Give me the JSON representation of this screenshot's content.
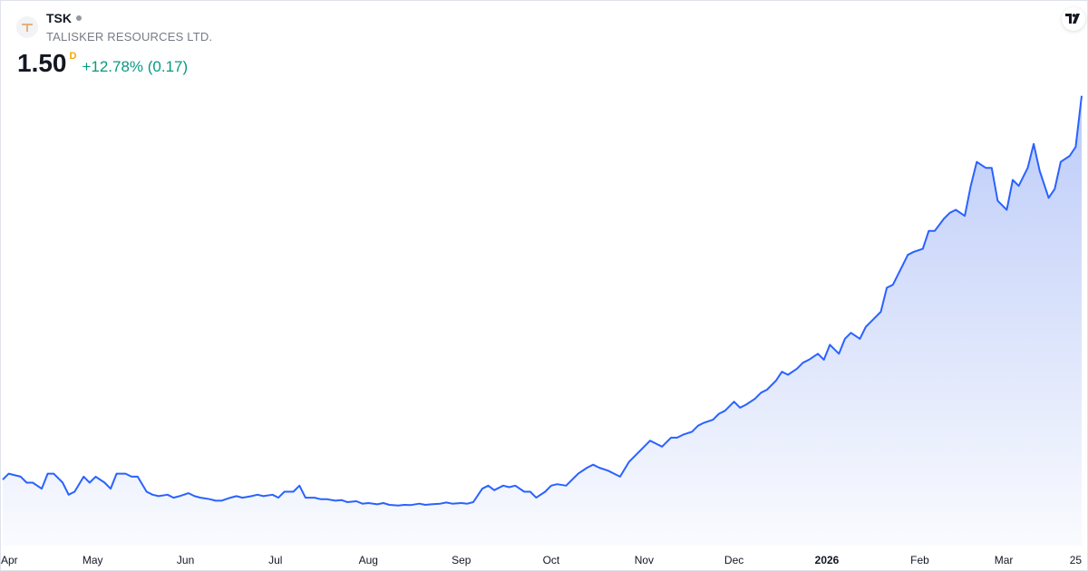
{
  "symbol": {
    "ticker": "TSK",
    "name": "TALISKER RESOURCES LTD.",
    "price": "1.50",
    "interval": "D",
    "change": "+12.78% (0.17)"
  },
  "icons": {
    "company_logo": "talisker-logo-icon",
    "status": "status-dot-icon",
    "brand": "tradingview-logo-icon"
  },
  "colors": {
    "line": "#2962ff",
    "area_top": "#bccbf8",
    "change_positive": "#089981",
    "interval": "#f7a600"
  },
  "chart_data": {
    "type": "area",
    "x_start": "2025-04-01",
    "x_end": "2026-03-27",
    "ylim": [
      0,
      1.82
    ],
    "grid": false,
    "x_ticks": [
      {
        "label": "Apr",
        "date": "2025-04-01",
        "bold": false
      },
      {
        "label": "May",
        "date": "2025-05-01",
        "bold": false
      },
      {
        "label": "Jun",
        "date": "2025-06-01",
        "bold": false
      },
      {
        "label": "Jul",
        "date": "2025-07-01",
        "bold": false
      },
      {
        "label": "Aug",
        "date": "2025-08-01",
        "bold": false
      },
      {
        "label": "Sep",
        "date": "2025-09-01",
        "bold": false
      },
      {
        "label": "Oct",
        "date": "2025-10-01",
        "bold": false
      },
      {
        "label": "Nov",
        "date": "2025-11-01",
        "bold": false
      },
      {
        "label": "Dec",
        "date": "2025-12-01",
        "bold": false
      },
      {
        "label": "2026",
        "date": "2026-01-01",
        "bold": true
      },
      {
        "label": "Feb",
        "date": "2026-02-01",
        "bold": false
      },
      {
        "label": "Mar",
        "date": "2026-03-01",
        "bold": false
      },
      {
        "label": "25",
        "date": "2026-03-25",
        "bold": false
      }
    ],
    "series": [
      {
        "values": [
          [
            "2025-04-01",
            0.22
          ],
          [
            "2025-04-03",
            0.24
          ],
          [
            "2025-04-07",
            0.23
          ],
          [
            "2025-04-09",
            0.21
          ],
          [
            "2025-04-11",
            0.21
          ],
          [
            "2025-04-14",
            0.19
          ],
          [
            "2025-04-16",
            0.24
          ],
          [
            "2025-04-18",
            0.24
          ],
          [
            "2025-04-21",
            0.21
          ],
          [
            "2025-04-23",
            0.17
          ],
          [
            "2025-04-25",
            0.18
          ],
          [
            "2025-04-28",
            0.23
          ],
          [
            "2025-04-30",
            0.21
          ],
          [
            "2025-05-02",
            0.23
          ],
          [
            "2025-05-05",
            0.21
          ],
          [
            "2025-05-07",
            0.19
          ],
          [
            "2025-05-09",
            0.24
          ],
          [
            "2025-05-12",
            0.24
          ],
          [
            "2025-05-14",
            0.23
          ],
          [
            "2025-05-16",
            0.23
          ],
          [
            "2025-05-19",
            0.18
          ],
          [
            "2025-05-21",
            0.17
          ],
          [
            "2025-05-23",
            0.165
          ],
          [
            "2025-05-26",
            0.17
          ],
          [
            "2025-05-28",
            0.16
          ],
          [
            "2025-05-30",
            0.165
          ],
          [
            "2025-06-02",
            0.175
          ],
          [
            "2025-06-04",
            0.165
          ],
          [
            "2025-06-06",
            0.16
          ],
          [
            "2025-06-09",
            0.155
          ],
          [
            "2025-06-11",
            0.15
          ],
          [
            "2025-06-13",
            0.15
          ],
          [
            "2025-06-16",
            0.16
          ],
          [
            "2025-06-18",
            0.165
          ],
          [
            "2025-06-20",
            0.16
          ],
          [
            "2025-06-23",
            0.165
          ],
          [
            "2025-06-25",
            0.17
          ],
          [
            "2025-06-27",
            0.165
          ],
          [
            "2025-06-30",
            0.17
          ],
          [
            "2025-07-02",
            0.16
          ],
          [
            "2025-07-04",
            0.18
          ],
          [
            "2025-07-07",
            0.18
          ],
          [
            "2025-07-09",
            0.2
          ],
          [
            "2025-07-11",
            0.16
          ],
          [
            "2025-07-14",
            0.16
          ],
          [
            "2025-07-16",
            0.155
          ],
          [
            "2025-07-18",
            0.155
          ],
          [
            "2025-07-21",
            0.15
          ],
          [
            "2025-07-23",
            0.152
          ],
          [
            "2025-07-25",
            0.145
          ],
          [
            "2025-07-28",
            0.148
          ],
          [
            "2025-07-30",
            0.14
          ],
          [
            "2025-08-01",
            0.142
          ],
          [
            "2025-08-04",
            0.138
          ],
          [
            "2025-08-06",
            0.142
          ],
          [
            "2025-08-08",
            0.136
          ],
          [
            "2025-08-11",
            0.134
          ],
          [
            "2025-08-13",
            0.136
          ],
          [
            "2025-08-15",
            0.135
          ],
          [
            "2025-08-18",
            0.14
          ],
          [
            "2025-08-20",
            0.136
          ],
          [
            "2025-08-22",
            0.138
          ],
          [
            "2025-08-25",
            0.14
          ],
          [
            "2025-08-27",
            0.144
          ],
          [
            "2025-08-29",
            0.14
          ],
          [
            "2025-09-01",
            0.142
          ],
          [
            "2025-09-03",
            0.14
          ],
          [
            "2025-09-05",
            0.145
          ],
          [
            "2025-09-08",
            0.19
          ],
          [
            "2025-09-10",
            0.2
          ],
          [
            "2025-09-12",
            0.185
          ],
          [
            "2025-09-15",
            0.2
          ],
          [
            "2025-09-17",
            0.195
          ],
          [
            "2025-09-19",
            0.2
          ],
          [
            "2025-09-22",
            0.18
          ],
          [
            "2025-09-24",
            0.18
          ],
          [
            "2025-09-26",
            0.16
          ],
          [
            "2025-09-29",
            0.18
          ],
          [
            "2025-10-01",
            0.2
          ],
          [
            "2025-10-03",
            0.205
          ],
          [
            "2025-10-06",
            0.2
          ],
          [
            "2025-10-08",
            0.22
          ],
          [
            "2025-10-10",
            0.24
          ],
          [
            "2025-10-13",
            0.26
          ],
          [
            "2025-10-15",
            0.27
          ],
          [
            "2025-10-17",
            0.26
          ],
          [
            "2025-10-20",
            0.25
          ],
          [
            "2025-10-22",
            0.24
          ],
          [
            "2025-10-24",
            0.23
          ],
          [
            "2025-10-27",
            0.28
          ],
          [
            "2025-10-29",
            0.3
          ],
          [
            "2025-10-31",
            0.32
          ],
          [
            "2025-11-03",
            0.35
          ],
          [
            "2025-11-05",
            0.34
          ],
          [
            "2025-11-07",
            0.33
          ],
          [
            "2025-11-10",
            0.36
          ],
          [
            "2025-11-12",
            0.36
          ],
          [
            "2025-11-14",
            0.37
          ],
          [
            "2025-11-17",
            0.38
          ],
          [
            "2025-11-19",
            0.4
          ],
          [
            "2025-11-21",
            0.41
          ],
          [
            "2025-11-24",
            0.42
          ],
          [
            "2025-11-26",
            0.44
          ],
          [
            "2025-11-28",
            0.45
          ],
          [
            "2025-12-01",
            0.48
          ],
          [
            "2025-12-03",
            0.46
          ],
          [
            "2025-12-05",
            0.47
          ],
          [
            "2025-12-08",
            0.49
          ],
          [
            "2025-12-10",
            0.51
          ],
          [
            "2025-12-12",
            0.52
          ],
          [
            "2025-12-15",
            0.55
          ],
          [
            "2025-12-17",
            0.58
          ],
          [
            "2025-12-19",
            0.57
          ],
          [
            "2025-12-22",
            0.59
          ],
          [
            "2025-12-24",
            0.61
          ],
          [
            "2025-12-26",
            0.62
          ],
          [
            "2025-12-29",
            0.64
          ],
          [
            "2025-12-31",
            0.62
          ],
          [
            "2026-01-02",
            0.67
          ],
          [
            "2026-01-05",
            0.64
          ],
          [
            "2026-01-07",
            0.69
          ],
          [
            "2026-01-09",
            0.71
          ],
          [
            "2026-01-12",
            0.69
          ],
          [
            "2026-01-14",
            0.73
          ],
          [
            "2026-01-16",
            0.75
          ],
          [
            "2026-01-19",
            0.78
          ],
          [
            "2026-01-21",
            0.86
          ],
          [
            "2026-01-23",
            0.87
          ],
          [
            "2026-01-26",
            0.93
          ],
          [
            "2026-01-28",
            0.97
          ],
          [
            "2026-01-30",
            0.98
          ],
          [
            "2026-02-02",
            0.99
          ],
          [
            "2026-02-04",
            1.05
          ],
          [
            "2026-02-06",
            1.05
          ],
          [
            "2026-02-09",
            1.09
          ],
          [
            "2026-02-11",
            1.11
          ],
          [
            "2026-02-13",
            1.12
          ],
          [
            "2026-02-16",
            1.1
          ],
          [
            "2026-02-18",
            1.2
          ],
          [
            "2026-02-20",
            1.28
          ],
          [
            "2026-02-23",
            1.26
          ],
          [
            "2026-02-25",
            1.26
          ],
          [
            "2026-02-27",
            1.15
          ],
          [
            "2026-03-02",
            1.12
          ],
          [
            "2026-03-04",
            1.22
          ],
          [
            "2026-03-06",
            1.2
          ],
          [
            "2026-03-09",
            1.26
          ],
          [
            "2026-03-11",
            1.34
          ],
          [
            "2026-03-13",
            1.25
          ],
          [
            "2026-03-16",
            1.16
          ],
          [
            "2026-03-18",
            1.19
          ],
          [
            "2026-03-20",
            1.28
          ],
          [
            "2026-03-23",
            1.3
          ],
          [
            "2026-03-25",
            1.33
          ],
          [
            "2026-03-27",
            1.5
          ]
        ]
      }
    ]
  }
}
